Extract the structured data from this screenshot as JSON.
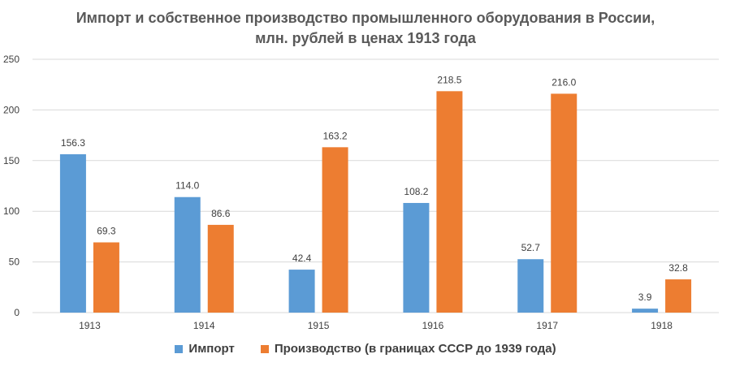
{
  "chart_data": {
    "type": "bar",
    "title_lines": [
      "Импорт и собственное производство промышленного оборудования в России,",
      "млн. рублей в ценах 1913 года"
    ],
    "categories": [
      "1913",
      "1914",
      "1915",
      "1916",
      "1917",
      "1918"
    ],
    "series": [
      {
        "name": "Импорт",
        "color": "#5B9BD5",
        "values": [
          156.3,
          114.0,
          42.4,
          108.2,
          52.7,
          3.9
        ],
        "labels": [
          "156.3",
          "114.0",
          "42.4",
          "108.2",
          "52.7",
          "3.9"
        ]
      },
      {
        "name": "Производство (в границах СССР до 1939 года)",
        "color": "#ED7D31",
        "values": [
          69.3,
          86.6,
          163.2,
          218.5,
          216.0,
          32.8
        ],
        "labels": [
          "69.3",
          "86.6",
          "163.2",
          "218.5",
          "216.0",
          "32.8"
        ]
      }
    ],
    "yticks": [
      "0",
      "50",
      "100",
      "150",
      "200",
      "250"
    ],
    "ylim": [
      0,
      250
    ],
    "grid": true,
    "legend_position": "bottom",
    "gridline_color": "#D9D9D9"
  }
}
